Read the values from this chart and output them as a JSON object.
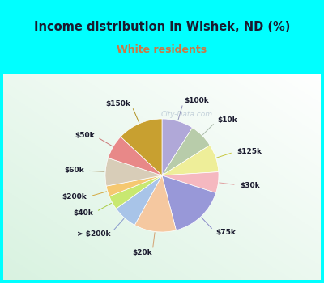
{
  "title": "Income distribution in Wishek, ND (%)",
  "subtitle": "White residents",
  "title_color": "#1a1a2e",
  "subtitle_color": "#cc7744",
  "background_cyan": "#00ffff",
  "background_chart": "#d8ede0",
  "watermark": "City-Data.com",
  "slices": [
    {
      "label": "$100k",
      "value": 9,
      "color": "#b0a8d8"
    },
    {
      "label": "$10k",
      "value": 7,
      "color": "#b8ccaa"
    },
    {
      "label": "$125k",
      "value": 8,
      "color": "#eeee99"
    },
    {
      "label": "$30k",
      "value": 6,
      "color": "#f5b8c0"
    },
    {
      "label": "$75k",
      "value": 16,
      "color": "#9898d8"
    },
    {
      "label": "$20k",
      "value": 12,
      "color": "#f5c8a0"
    },
    {
      "label": "> $200k",
      "value": 7,
      "color": "#a8c4e8"
    },
    {
      "label": "$40k",
      "value": 4,
      "color": "#c8e870"
    },
    {
      "label": "$200k",
      "value": 3,
      "color": "#f5c870"
    },
    {
      "label": "$60k",
      "value": 8,
      "color": "#d8cdb8"
    },
    {
      "label": "$50k",
      "value": 7,
      "color": "#e88888"
    },
    {
      "label": "$150k",
      "value": 13,
      "color": "#c8a030"
    }
  ],
  "line_colors": {
    "$100k": "#9090b8",
    "$10k": "#aabbaa",
    "$125k": "#c8c840",
    "$30k": "#e0a0a0",
    "$75k": "#8888c8",
    "$20k": "#d4a070",
    "> $200k": "#8899cc",
    "$40k": "#aacc44",
    "$200k": "#d4a840",
    "$60k": "#c0b898",
    "$50k": "#cc7777",
    "$150k": "#b09020"
  }
}
